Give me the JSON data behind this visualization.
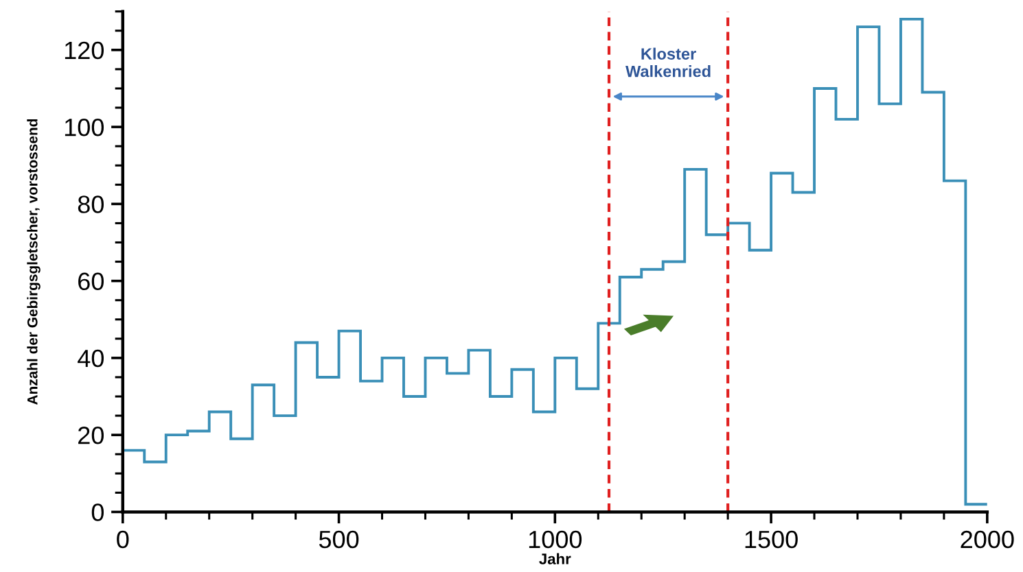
{
  "chart_data": {
    "type": "histogram",
    "bins": [
      0,
      50,
      100,
      150,
      200,
      250,
      300,
      350,
      400,
      450,
      500,
      550,
      600,
      650,
      700,
      750,
      800,
      850,
      900,
      950,
      1000,
      1050,
      1100,
      1150,
      1200,
      1250,
      1300,
      1350,
      1400,
      1450,
      1500,
      1550,
      1600,
      1650,
      1700,
      1750,
      1800,
      1850,
      1900,
      1950,
      2000
    ],
    "values": [
      16,
      13,
      20,
      21,
      26,
      19,
      33,
      25,
      44,
      35,
      47,
      34,
      40,
      30,
      40,
      36,
      42,
      30,
      37,
      26,
      40,
      32,
      49,
      61,
      63,
      65,
      89,
      72,
      75,
      68,
      88,
      83,
      110,
      102,
      126,
      106,
      128,
      109,
      86,
      2
    ],
    "color": "#3a8fb7",
    "xlabel": "Jahr",
    "ylabel": "Anzahl der Gebirgsgletscher, vorstossend",
    "xlim": [
      0,
      2000
    ],
    "ylim": [
      0,
      130
    ],
    "xticks": [
      0,
      500,
      1000,
      1500,
      2000
    ],
    "yticks": [
      0,
      20,
      40,
      60,
      80,
      100,
      120
    ],
    "ref_lines": [
      {
        "axis": "x",
        "value": 1125,
        "color": "#e02020",
        "line_style": "dashed"
      },
      {
        "axis": "x",
        "value": 1400,
        "color": "#e02020",
        "line_style": "dashed"
      }
    ],
    "annotations": [
      "Kloster\nWalkenried"
    ],
    "grid": false,
    "legend": false
  }
}
